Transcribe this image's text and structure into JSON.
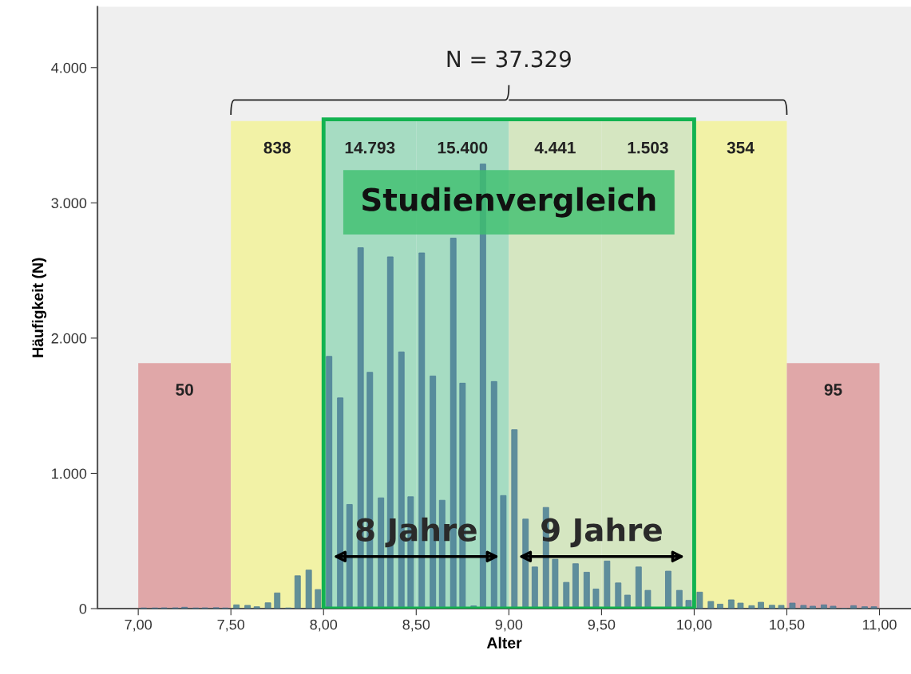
{
  "chart_data": {
    "type": "bar",
    "xlabel": "Alter",
    "ylabel": "Häufigkeit (N)",
    "x": [
      7.03,
      7.09,
      7.14,
      7.2,
      7.25,
      7.31,
      7.36,
      7.42,
      7.47,
      7.53,
      7.59,
      7.64,
      7.7,
      7.75,
      7.81,
      7.86,
      7.92,
      7.97,
      8.03,
      8.09,
      8.14,
      8.2,
      8.25,
      8.31,
      8.36,
      8.42,
      8.47,
      8.53,
      8.59,
      8.64,
      8.7,
      8.75,
      8.81,
      8.86,
      8.92,
      8.97,
      9.03,
      9.09,
      9.14,
      9.2,
      9.25,
      9.31,
      9.36,
      9.42,
      9.47,
      9.53,
      9.59,
      9.64,
      9.7,
      9.75,
      9.81,
      9.86,
      9.92,
      9.97,
      10.03,
      10.09,
      10.14,
      10.2,
      10.25,
      10.31,
      10.36,
      10.42,
      10.47,
      10.53,
      10.59,
      10.64,
      10.7,
      10.75,
      10.81,
      10.86,
      10.92,
      10.97
    ],
    "series": [
      {
        "color": "#4a7f96",
        "values": [
          5,
          5,
          6,
          6,
          10,
          5,
          6,
          7,
          5,
          28,
          24,
          14,
          43,
          116,
          5,
          243,
          285,
          141,
          1865,
          1558,
          770,
          2668,
          1747,
          819,
          2601,
          1898,
          827,
          2630,
          1720,
          801,
          2739,
          1667,
          20,
          3287,
          1679,
          836,
          1323,
          662,
          308,
          748,
          365,
          194,
          332,
          269,
          145,
          352,
          190,
          100,
          308,
          135,
          0,
          277,
          135,
          61,
          122,
          53,
          33,
          65,
          41,
          22,
          47,
          25,
          24,
          41,
          24,
          18,
          28,
          18,
          0,
          22,
          14,
          14
        ]
      }
    ],
    "xlim": [
      6.78,
      11.17
    ],
    "ylim": [
      0,
      4450
    ],
    "xticks": [
      {
        "value": 7,
        "label": "7,00"
      },
      {
        "value": 7.5,
        "label": "7,50"
      },
      {
        "value": 8,
        "label": "8,00"
      },
      {
        "value": 8.5,
        "label": "8,50"
      },
      {
        "value": 9,
        "label": "9,00"
      },
      {
        "value": 9.5,
        "label": "9,50"
      },
      {
        "value": 10,
        "label": "10,00"
      },
      {
        "value": 10.5,
        "label": "10,50"
      },
      {
        "value": 11,
        "label": "11,00"
      }
    ],
    "yticks": [
      0,
      {
        "value": 1000,
        "label": "1.000"
      },
      {
        "value": 2000,
        "label": "2.000"
      },
      {
        "value": 3000,
        "label": "3.000"
      },
      {
        "value": 4000,
        "label": "4.000"
      }
    ],
    "bands": [
      {
        "axis": "x",
        "from": 7,
        "to": 7.5,
        "label": "50",
        "color": "#e0a7a8"
      },
      {
        "axis": "x",
        "from": 7.5,
        "to": 8,
        "label": "838",
        "color": "#f2f2a6"
      },
      {
        "axis": "x",
        "from": 8,
        "to": 8.5,
        "label": "14.793",
        "color": "#a6dcc2"
      },
      {
        "axis": "x",
        "from": 8.5,
        "to": 9,
        "label": "15.400",
        "color": "#a6dcc2"
      },
      {
        "axis": "x",
        "from": 9,
        "to": 9.5,
        "label": "4.441",
        "color": "#d5e6c1"
      },
      {
        "axis": "x",
        "from": 9.5,
        "to": 10,
        "label": "1.503",
        "color": "#d5e6c1"
      },
      {
        "axis": "x",
        "from": 10,
        "to": 10.5,
        "label": "354",
        "color": "#f2f2a6"
      },
      {
        "axis": "x",
        "from": 10.5,
        "to": 11,
        "label": "95",
        "color": "#e0a7a8"
      }
    ],
    "annotations": [
      "N = 37.329",
      "Studienvergleich",
      "8 Jahre",
      "9 Jahre"
    ],
    "grid": false,
    "legend": false
  }
}
